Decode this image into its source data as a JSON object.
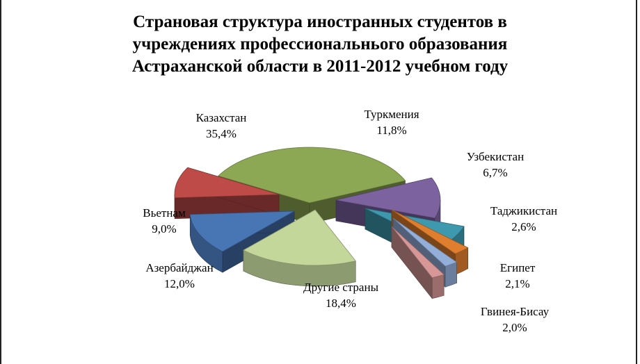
{
  "chart_data": {
    "type": "pie",
    "title_lines": [
      "Страновая структура иностранных студентов в",
      "учреждениях профессиональнього образования",
      "Астраханской области в 2011-2012 учебном году"
    ],
    "slices": [
      {
        "name": "Казахстан",
        "value_label": "35,4%",
        "value": 35.4,
        "color": "#8DA854"
      },
      {
        "name": "Туркмения",
        "value_label": "11,8%",
        "value": 11.8,
        "color": "#7C63A0"
      },
      {
        "name": "Узбекистан",
        "value_label": "6,7%",
        "value": 6.7,
        "color": "#3E99AF"
      },
      {
        "name": "Таджикистан",
        "value_label": "2,6%",
        "value": 2.6,
        "color": "#E07E2F"
      },
      {
        "name": "Египет",
        "value_label": "2,1%",
        "value": 2.1,
        "color": "#94AEDA"
      },
      {
        "name": "Гвинея-Бисау",
        "value_label": "2,0%",
        "value": 2.0,
        "color": "#D69796"
      },
      {
        "name": "Другие страны",
        "value_label": "18,4%",
        "value": 18.4,
        "color": "#C3D79B"
      },
      {
        "name": "Азербайджан",
        "value_label": "12,0%",
        "value": 12.0,
        "color": "#4875B4"
      },
      {
        "name": "Вьетнам",
        "value_label": "9,0%",
        "value": 9.0,
        "color": "#BE4B48"
      }
    ]
  }
}
